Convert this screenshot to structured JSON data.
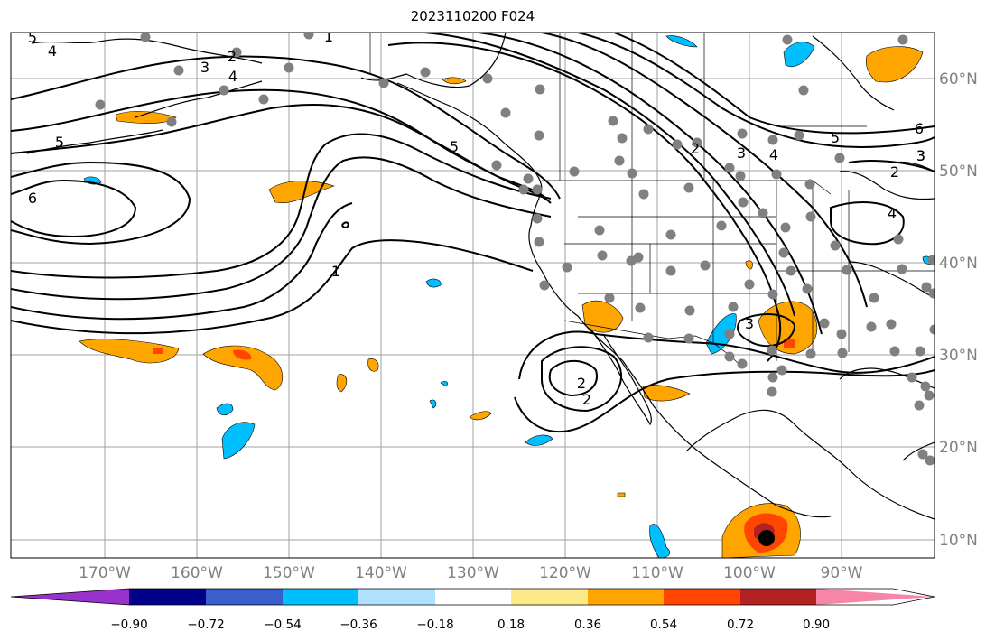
{
  "title": "2023110200 F024",
  "longitude_labels": [
    "170°W",
    "160°W",
    "150°W",
    "140°W",
    "130°W",
    "120°W",
    "110°W",
    "100°W",
    "90°W"
  ],
  "latitude_labels": [
    "60°N",
    "50°N",
    "40°N",
    "30°N",
    "20°N",
    "10°N"
  ],
  "colorbar": {
    "tick_labels": [
      "−0.90",
      "−0.72",
      "−0.54",
      "−0.36",
      "−0.18",
      "0.18",
      "0.36",
      "0.54",
      "0.72",
      "0.90"
    ],
    "colors": [
      "#9932cc",
      "#00008b",
      "#3a5fcd",
      "#00bfff",
      "#b0e2ff",
      "#ffffff",
      "#fce98a",
      "#ffa500",
      "#ff4500",
      "#b22222",
      "#f785a8"
    ]
  },
  "contour_labels": [
    "5",
    "4",
    "3",
    "2",
    "1",
    "4",
    "5",
    "6",
    "1",
    "5",
    "2",
    "3",
    "4",
    "5",
    "6",
    "3",
    "2",
    "4",
    "3",
    "2",
    "2",
    "3"
  ],
  "colors": {
    "land_line": "#000000",
    "grid": "#a0a0a0",
    "station": "#808080",
    "contour": "#000000"
  }
}
